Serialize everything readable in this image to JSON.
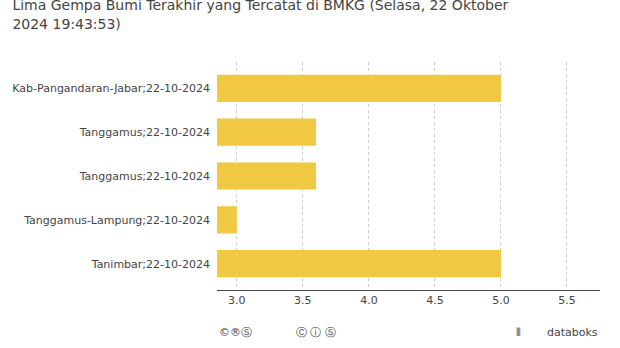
{
  "chart_data": {
    "type": "bar",
    "orientation": "horizontal",
    "title": "Lima Gempa Bumi Terakhir yang Tercatat di BMKG (Selasa, 22 Oktober\n2024 19:43:53)",
    "categories": [
      "Tanimbar;22-10-2024",
      "Tanggamus-Lampung;22-10-2024",
      "Tanggamus;22-10-2024",
      "Tanggamus;22-10-2024",
      "Kab-Pangandaran-Jabar;22-10-2024"
    ],
    "values": [
      5.0,
      3.0,
      3.6,
      3.6,
      5.0
    ],
    "color": "#F0C842",
    "xlim": [
      2.85,
      5.75
    ],
    "xticks": [
      {
        "value": 3.0,
        "label": "3.0"
      },
      3.5,
      {
        "value": 4.0,
        "label": "4.0"
      },
      4.5,
      {
        "value": 5.0,
        "label": "5.0"
      },
      5.5
    ],
    "grid": true,
    "annotations": [
      "©®Ⓢ",
      "Ⓒ ⓘ Ⓢ",
      "⦀",
      "databoks"
    ]
  }
}
